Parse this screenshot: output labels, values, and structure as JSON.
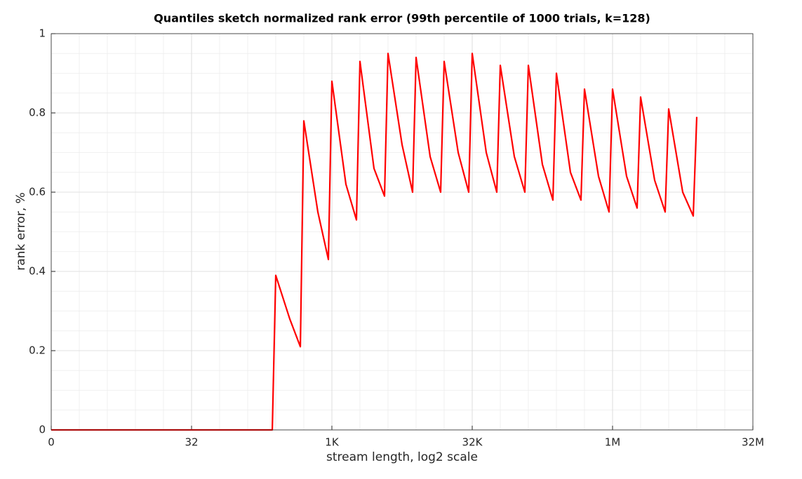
{
  "chart_data": {
    "type": "line",
    "title": "Quantiles sketch normalized rank error (99th percentile of 1000 trials, k=128)",
    "xlabel": "stream length, log2 scale",
    "ylabel": "rank error, %",
    "x_scale": "log2",
    "grid": true,
    "minor_grid": true,
    "xlim": [
      1,
      33554432
    ],
    "xticks": [
      {
        "value": 1,
        "label": "0"
      },
      32,
      {
        "value": 1024,
        "label": "1K"
      },
      {
        "value": 32768,
        "label": "32K"
      },
      {
        "value": 1048576,
        "label": "1M"
      },
      {
        "value": 33554432,
        "label": "32M"
      }
    ],
    "ylim": [
      0,
      1
    ],
    "yticks": [
      0,
      0.2,
      0.4,
      0.6,
      0.8,
      1
    ],
    "x": [
      1,
      235,
      256,
      362,
      470,
      512,
      724,
      939,
      1024,
      1448,
      1878,
      2048,
      2896,
      3756,
      4096,
      5793,
      7512,
      8192,
      11585,
      15024,
      16384,
      23170,
      30048,
      32768,
      46341,
      60096,
      65536,
      92682,
      120193,
      131072,
      185364,
      240385,
      262144,
      370728,
      480771,
      524288,
      741455,
      961541,
      1048576,
      1482910,
      1923083,
      2097152,
      2965821,
      3846165,
      4194304,
      5931642,
      7692330,
      8388608
    ],
    "series": [
      {
        "name": "rank error",
        "color": "#ff0000",
        "values": [
          0,
          0,
          0.39,
          0.28,
          0.21,
          0.78,
          0.55,
          0.43,
          0.88,
          0.62,
          0.53,
          0.93,
          0.66,
          0.59,
          0.95,
          0.72,
          0.6,
          0.94,
          0.69,
          0.6,
          0.93,
          0.7,
          0.6,
          0.95,
          0.7,
          0.6,
          0.92,
          0.69,
          0.6,
          0.92,
          0.67,
          0.58,
          0.9,
          0.65,
          0.58,
          0.86,
          0.64,
          0.55,
          0.86,
          0.64,
          0.56,
          0.84,
          0.63,
          0.55,
          0.81,
          0.6,
          0.54,
          0.79
        ]
      }
    ]
  }
}
